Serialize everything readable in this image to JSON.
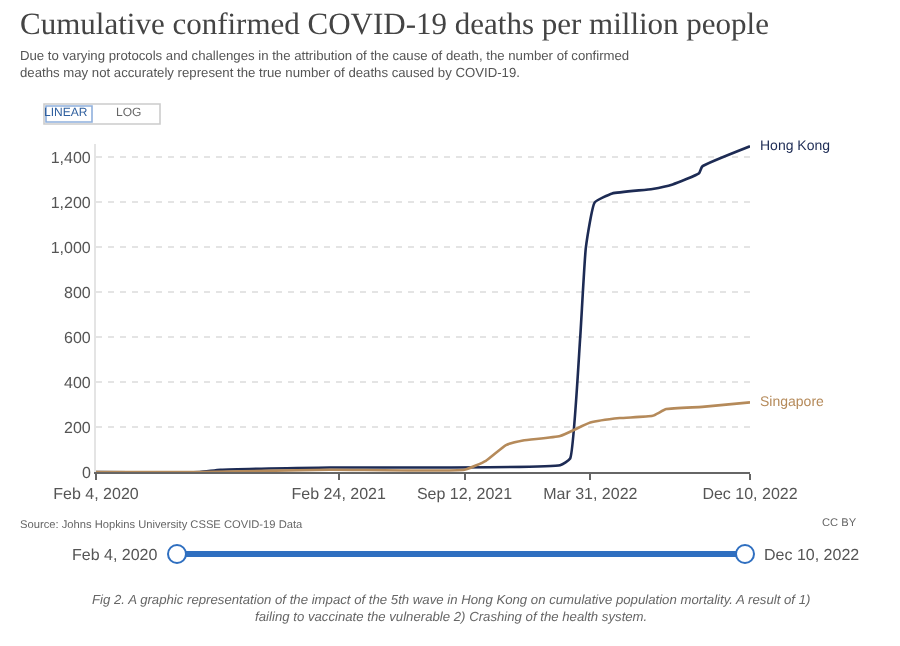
{
  "chart_data": {
    "type": "line",
    "title": "Cumulative confirmed COVID-19 deaths per million people",
    "subtitle": "Due to varying protocols and challenges in the attribution of the cause of death, the number of confirmed deaths may not accurately represent the true number of deaths caused by COVID-19.",
    "xlim": [
      "2020-02-04",
      "2022-12-10"
    ],
    "xticks": [
      {
        "value": "2020-02-04",
        "label": "Feb 4, 2020"
      },
      {
        "value": "2021-02-24",
        "label": "Feb 24, 2021"
      },
      {
        "value": "2021-09-12",
        "label": "Sep 12, 2021"
      },
      {
        "value": "2022-03-31",
        "label": "Mar 31, 2022"
      },
      {
        "value": "2022-12-10",
        "label": "Dec 10, 2022"
      }
    ],
    "ylim": [
      0,
      1460
    ],
    "yticks": [
      0,
      200,
      400,
      600,
      800,
      {
        "value": 1000,
        "label": "1,000"
      },
      {
        "value": 1200,
        "label": "1,200"
      },
      {
        "value": 1400,
        "label": "1,400"
      }
    ],
    "grid": "y",
    "legend": false,
    "marker": "none",
    "line_style": "solid",
    "series": [
      {
        "name": "Hong Kong",
        "color": "#1d2b54",
        "x": [
          "2020-02-04",
          "2020-07-18",
          "2020-08-20",
          "2021-02-10",
          "2022-02-11",
          "2022-02-27",
          "2022-03-15",
          "2022-03-24",
          "2022-04-07",
          "2022-05-05",
          "2022-07-08",
          "2022-08-09",
          "2022-09-20",
          "2022-09-25",
          "2022-12-10"
        ],
        "values": [
          0,
          0,
          10,
          20,
          30,
          60,
          600,
          1000,
          1200,
          1240,
          1260,
          1280,
          1330,
          1360,
          1450
        ]
      },
      {
        "name": "Singapore",
        "color": "#b58a5a",
        "x": [
          "2020-02-04",
          "2020-07-18",
          "2021-02-10",
          "2021-09-12",
          "2021-10-16",
          "2021-11-17",
          "2021-12-14",
          "2022-02-11",
          "2022-03-31",
          "2022-05-17",
          "2022-07-08",
          "2022-07-30",
          "2022-09-25",
          "2022-12-10"
        ],
        "values": [
          0,
          0,
          10,
          10,
          50,
          120,
          140,
          160,
          220,
          240,
          250,
          280,
          290,
          310
        ]
      }
    ],
    "annotations": [
      "LINEAR",
      "LOG",
      "Source: Johns Hopkins University CSSE COVID-19 Data",
      "CC BY",
      "Feb 4, 2020",
      "Dec 10, 2022",
      "Fig 2. A graphic representation of the impact of the 5th wave in Hong Kong on cumulative population mortality. A result of 1) failing to vaccinate the vulnerable 2) Crashing of the health system."
    ]
  }
}
